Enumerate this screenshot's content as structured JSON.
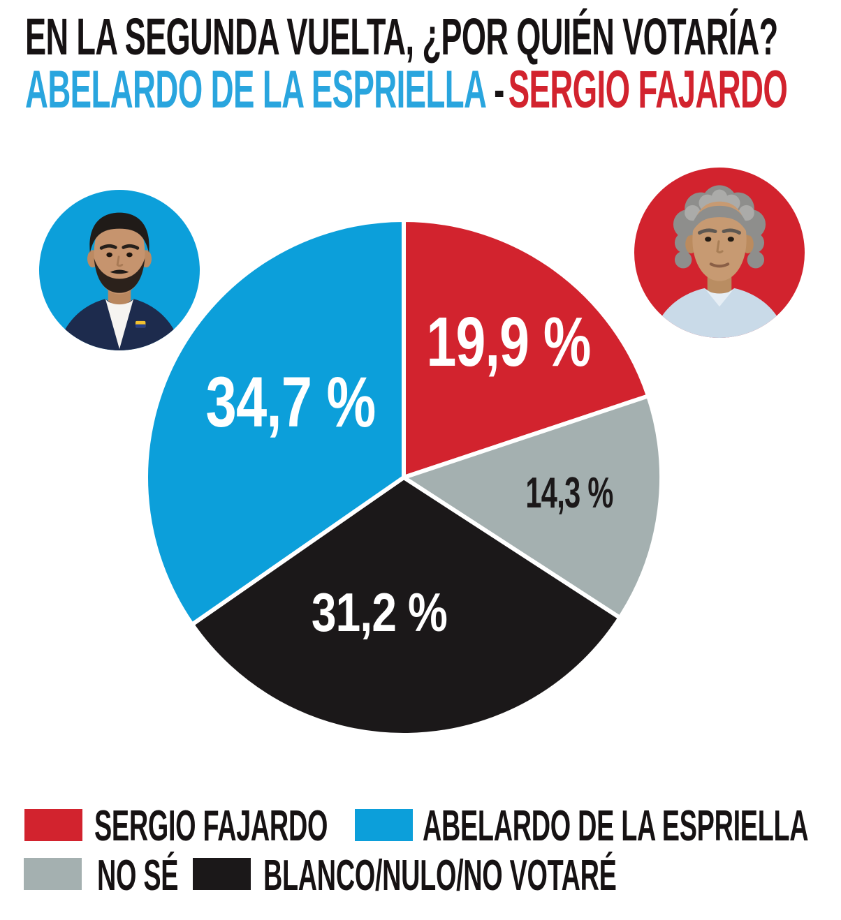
{
  "title": {
    "line1": "EN LA SEGUNDA VUELTA, ¿POR QUIÉN VOTARÍA?",
    "line2_candidate1": "ABELARDO DE LA ESPRIELLA",
    "line2_separator": "-",
    "line2_candidate2": "SERGIO FAJARDO"
  },
  "colors": {
    "headline": "#161213",
    "title_blue": "#29A5DE",
    "title_red": "#D2232E",
    "pie_red": "#D2232E",
    "pie_blue": "#0C9FDA",
    "pie_gray": "#A4B0B0",
    "pie_black": "#1B1819",
    "label_white": "#FFFFFF",
    "legend_text": "#161213"
  },
  "photos": {
    "left": {
      "person": "ABELARDO DE LA ESPRIELLA",
      "background": "#0C9FDA"
    },
    "right": {
      "person": "SERGIO FAJARDO",
      "background": "#D2232E"
    }
  },
  "chart_data": {
    "type": "pie",
    "title": "EN LA SEGUNDA VUELTA, ¿POR QUIÉN VOTARÍA? ABELARDO DE LA ESPRIELLA - SERGIO FAJARDO",
    "start_angle_deg": 0,
    "direction": "clockwise",
    "slices": [
      {
        "label": "SERGIO FAJARDO",
        "value": 19.9,
        "display": "19,9 %",
        "color": "#D2232E",
        "text_color": "#FFFFFF"
      },
      {
        "label": "NO SÉ",
        "value": 14.3,
        "display": "14,3 %",
        "color": "#A4B0B0",
        "text_color": "#1B1819"
      },
      {
        "label": "BLANCO/NULO/NO VOTARÉ",
        "value": 31.2,
        "display": "31,2 %",
        "color": "#1B1819",
        "text_color": "#FFFFFF"
      },
      {
        "label": "ABELARDO DE LA ESPRIELLA",
        "value": 34.7,
        "display": "34,7 %",
        "color": "#0C9FDA",
        "text_color": "#FFFFFF"
      }
    ]
  },
  "legend": {
    "rows": [
      {
        "items": [
          {
            "label": "SERGIO FAJARDO",
            "color": "#D2232E"
          },
          {
            "label": "ABELARDO DE LA ESPRIELLA",
            "color": "#0C9FDA"
          }
        ]
      },
      {
        "items": [
          {
            "label": "NO SÉ",
            "color": "#A4B0B0"
          },
          {
            "label": "BLANCO/NULO/NO VOTARÉ",
            "color": "#1B1819"
          }
        ]
      }
    ]
  }
}
